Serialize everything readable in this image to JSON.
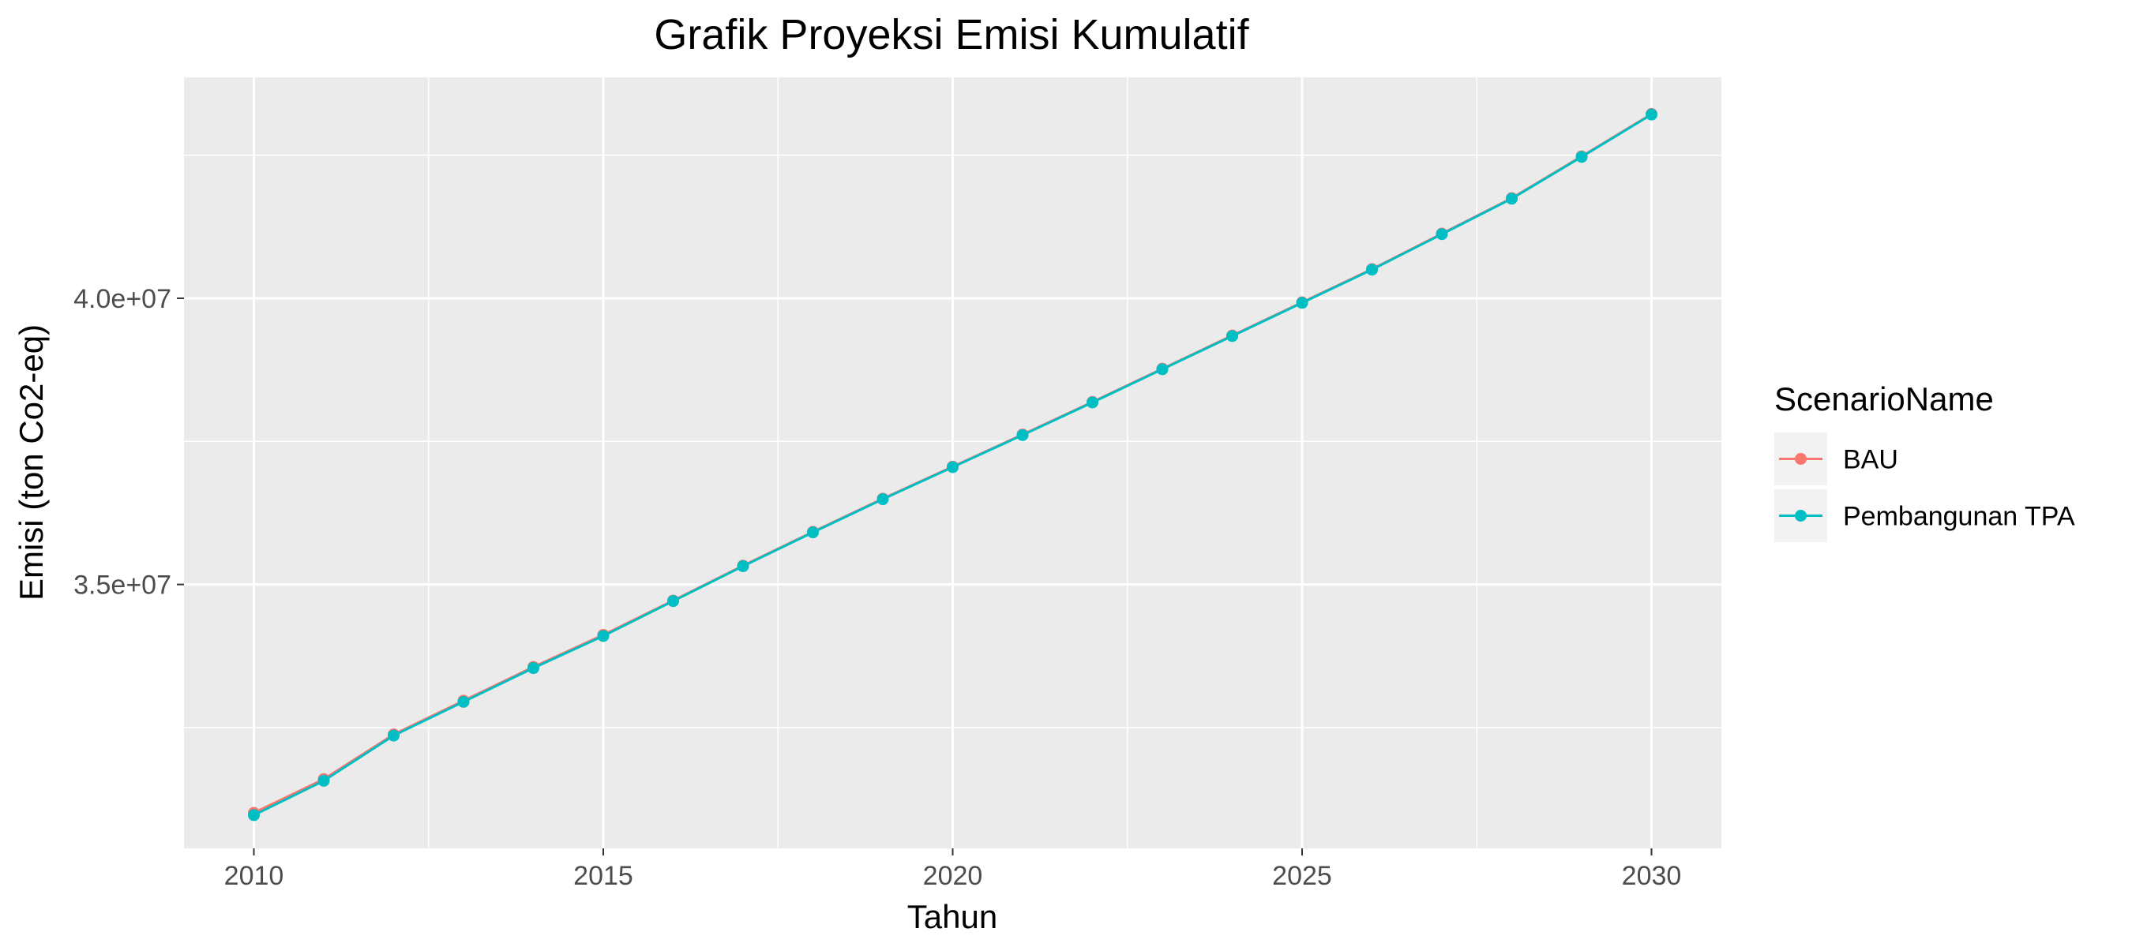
{
  "chart_data": {
    "type": "line",
    "title": "Grafik Proyeksi Emisi Kumulatif",
    "xlabel": "Tahun",
    "ylabel": "Emisi (ton Co2-eq)",
    "x": [
      2010,
      2011,
      2012,
      2013,
      2014,
      2015,
      2016,
      2017,
      2018,
      2019,
      2020,
      2021,
      2022,
      2023,
      2024,
      2025,
      2026,
      2027,
      2028,
      2029,
      2030
    ],
    "series": [
      {
        "name": "BAU",
        "color": "#F8766D",
        "values": [
          31010000,
          31600000,
          32380000,
          32970000,
          33560000,
          34120000,
          34720000,
          35330000,
          35920000,
          36500000,
          37060000,
          37620000,
          38190000,
          38770000,
          39350000,
          39930000,
          40510000,
          41130000,
          41750000,
          42480000,
          43220000
        ]
      },
      {
        "name": "Pembangunan TPA",
        "color": "#00BFC4",
        "values": [
          30970000,
          31570000,
          32360000,
          32950000,
          33540000,
          34100000,
          34710000,
          35320000,
          35910000,
          36490000,
          37050000,
          37610000,
          38180000,
          38760000,
          39340000,
          39920000,
          40500000,
          41120000,
          41740000,
          42470000,
          43210000
        ]
      }
    ],
    "xlim": [
      2009.0,
      2031.0
    ],
    "ylim": [
      30390000,
      43860000
    ],
    "x_ticks": [
      2010,
      2015,
      2020,
      2025,
      2030
    ],
    "x_tick_labels": [
      "2010",
      "2015",
      "2020",
      "2025",
      "2030"
    ],
    "y_ticks": [
      35000000,
      40000000
    ],
    "y_tick_labels": [
      "3.5e+07",
      "4.0e+07"
    ],
    "grid": true,
    "legend": {
      "title": "ScenarioName",
      "position": "right",
      "entries": [
        "BAU",
        "Pembangunan TPA"
      ]
    },
    "panel_background": "#EBEBEB",
    "grid_color": "#FFFFFF"
  }
}
